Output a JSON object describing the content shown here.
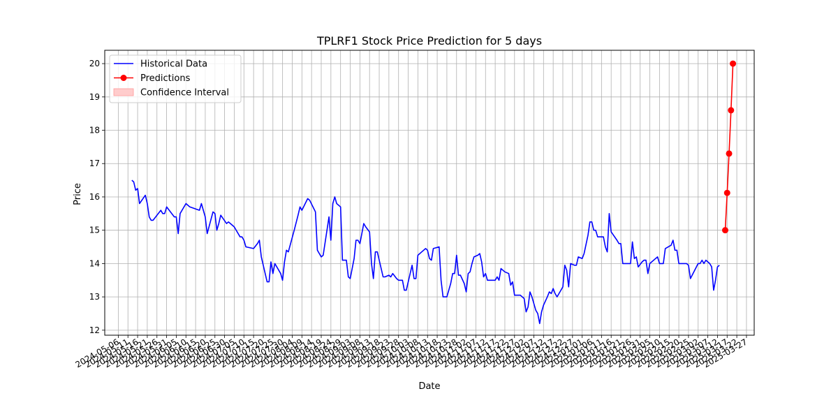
{
  "chart_data": {
    "type": "line",
    "title": "TPLRF1 Stock Price Prediction for 5 days",
    "xlabel": "Date",
    "ylabel": "Price",
    "xlim": [
      "2024-04-29",
      "2025-03-31"
    ],
    "ylim": [
      11.85,
      20.4
    ],
    "grid": true,
    "legend_position": "top-left",
    "y_ticks": [
      12,
      13,
      14,
      15,
      16,
      17,
      18,
      19,
      20
    ],
    "x_tick_labels": [
      "2024-05-06",
      "2024-05-11",
      "2024-05-16",
      "2024-05-21",
      "2024-05-26",
      "2024-05-31",
      "2024-06-05",
      "2024-06-10",
      "2024-06-15",
      "2024-06-20",
      "2024-06-25",
      "2024-06-30",
      "2024-07-05",
      "2024-07-10",
      "2024-07-15",
      "2024-07-20",
      "2024-07-25",
      "2024-07-30",
      "2024-08-04",
      "2024-08-09",
      "2024-08-14",
      "2024-08-19",
      "2024-08-24",
      "2024-08-29",
      "2024-09-03",
      "2024-09-08",
      "2024-09-13",
      "2024-09-18",
      "2024-09-23",
      "2024-09-28",
      "2024-10-03",
      "2024-10-08",
      "2024-10-13",
      "2024-10-18",
      "2024-10-23",
      "2024-10-28",
      "2024-11-02",
      "2024-11-07",
      "2024-11-12",
      "2024-11-17",
      "2024-11-22",
      "2024-11-27",
      "2024-12-02",
      "2024-12-07",
      "2024-12-12",
      "2024-12-17",
      "2024-12-22",
      "2024-12-27",
      "2025-01-01",
      "2025-01-06",
      "2025-01-11",
      "2025-01-16",
      "2025-01-21",
      "2025-01-26",
      "2025-01-31",
      "2025-02-05",
      "2025-02-10",
      "2025-02-15",
      "2025-02-20",
      "2025-02-25",
      "2025-03-02",
      "2025-03-07",
      "2025-03-12",
      "2025-03-17",
      "2025-03-22",
      "2025-03-27"
    ],
    "series": [
      {
        "name": "Historical Data",
        "color": "#0000ff",
        "marker": "none",
        "points": [
          [
            "2024-05-13",
            16.5
          ],
          [
            "2024-05-14",
            16.45
          ],
          [
            "2024-05-15",
            16.2
          ],
          [
            "2024-05-16",
            16.25
          ],
          [
            "2024-05-17",
            15.8
          ],
          [
            "2024-05-20",
            16.05
          ],
          [
            "2024-05-21",
            15.8
          ],
          [
            "2024-05-22",
            15.4
          ],
          [
            "2024-05-23",
            15.3
          ],
          [
            "2024-05-24",
            15.3
          ],
          [
            "2024-05-28",
            15.6
          ],
          [
            "2024-05-29",
            15.5
          ],
          [
            "2024-05-30",
            15.5
          ],
          [
            "2024-05-31",
            15.7
          ],
          [
            "2024-06-04",
            15.4
          ],
          [
            "2024-06-05",
            15.4
          ],
          [
            "2024-06-06",
            14.9
          ],
          [
            "2024-06-07",
            15.5
          ],
          [
            "2024-06-10",
            15.8
          ],
          [
            "2024-06-11",
            15.75
          ],
          [
            "2024-06-12",
            15.7
          ],
          [
            "2024-06-17",
            15.6
          ],
          [
            "2024-06-18",
            15.8
          ],
          [
            "2024-06-20",
            15.4
          ],
          [
            "2024-06-21",
            14.9
          ],
          [
            "2024-06-24",
            15.55
          ],
          [
            "2024-06-25",
            15.5
          ],
          [
            "2024-06-26",
            15.0
          ],
          [
            "2024-06-27",
            15.2
          ],
          [
            "2024-06-28",
            15.45
          ],
          [
            "2024-07-01",
            15.2
          ],
          [
            "2024-07-02",
            15.25
          ],
          [
            "2024-07-03",
            15.2
          ],
          [
            "2024-07-05",
            15.1
          ],
          [
            "2024-07-08",
            14.8
          ],
          [
            "2024-07-09",
            14.8
          ],
          [
            "2024-07-10",
            14.7
          ],
          [
            "2024-07-11",
            14.5
          ],
          [
            "2024-07-15",
            14.45
          ],
          [
            "2024-07-17",
            14.6
          ],
          [
            "2024-07-18",
            14.7
          ],
          [
            "2024-07-19",
            14.2
          ],
          [
            "2024-07-22",
            13.45
          ],
          [
            "2024-07-23",
            13.45
          ],
          [
            "2024-07-24",
            14.05
          ],
          [
            "2024-07-25",
            13.7
          ],
          [
            "2024-07-26",
            14.0
          ],
          [
            "2024-07-29",
            13.7
          ],
          [
            "2024-07-30",
            13.5
          ],
          [
            "2024-07-31",
            14.05
          ],
          [
            "2024-08-01",
            14.4
          ],
          [
            "2024-08-02",
            14.35
          ],
          [
            "2024-08-05",
            15.0
          ],
          [
            "2024-08-07",
            15.45
          ],
          [
            "2024-08-08",
            15.7
          ],
          [
            "2024-08-09",
            15.6
          ],
          [
            "2024-08-12",
            15.95
          ],
          [
            "2024-08-13",
            15.9
          ],
          [
            "2024-08-16",
            15.55
          ],
          [
            "2024-08-17",
            14.4
          ],
          [
            "2024-08-19",
            14.2
          ],
          [
            "2024-08-20",
            14.25
          ],
          [
            "2024-08-23",
            15.4
          ],
          [
            "2024-08-24",
            14.7
          ],
          [
            "2024-08-25",
            15.8
          ],
          [
            "2024-08-26",
            16.0
          ],
          [
            "2024-08-27",
            15.8
          ],
          [
            "2024-08-29",
            15.7
          ],
          [
            "2024-08-30",
            14.1
          ],
          [
            "2024-09-01",
            14.1
          ],
          [
            "2024-09-02",
            13.6
          ],
          [
            "2024-09-03",
            13.55
          ],
          [
            "2024-09-05",
            14.15
          ],
          [
            "2024-09-06",
            14.7
          ],
          [
            "2024-09-07",
            14.7
          ],
          [
            "2024-09-08",
            14.6
          ],
          [
            "2024-09-10",
            15.2
          ],
          [
            "2024-09-11",
            15.1
          ],
          [
            "2024-09-13",
            14.95
          ],
          [
            "2024-09-14",
            14.0
          ],
          [
            "2024-09-15",
            13.55
          ],
          [
            "2024-09-16",
            14.35
          ],
          [
            "2024-09-17",
            14.35
          ],
          [
            "2024-09-20",
            13.6
          ],
          [
            "2024-09-21",
            13.6
          ],
          [
            "2024-09-23",
            13.65
          ],
          [
            "2024-09-24",
            13.6
          ],
          [
            "2024-09-25",
            13.7
          ],
          [
            "2024-09-27",
            13.55
          ],
          [
            "2024-09-28",
            13.5
          ],
          [
            "2024-09-30",
            13.5
          ],
          [
            "2024-10-01",
            13.2
          ],
          [
            "2024-10-02",
            13.2
          ],
          [
            "2024-10-05",
            13.95
          ],
          [
            "2024-10-06",
            13.55
          ],
          [
            "2024-10-07",
            13.55
          ],
          [
            "2024-10-08",
            14.25
          ],
          [
            "2024-10-10",
            14.35
          ],
          [
            "2024-10-12",
            14.45
          ],
          [
            "2024-10-13",
            14.4
          ],
          [
            "2024-10-14",
            14.15
          ],
          [
            "2024-10-15",
            14.1
          ],
          [
            "2024-10-16",
            14.45
          ],
          [
            "2024-10-19",
            14.5
          ],
          [
            "2024-10-20",
            13.5
          ],
          [
            "2024-10-21",
            13.0
          ],
          [
            "2024-10-23",
            13.0
          ],
          [
            "2024-10-25",
            13.4
          ],
          [
            "2024-10-26",
            13.7
          ],
          [
            "2024-10-27",
            13.7
          ],
          [
            "2024-10-28",
            14.25
          ],
          [
            "2024-10-29",
            13.65
          ],
          [
            "2024-10-30",
            13.65
          ],
          [
            "2024-11-01",
            13.4
          ],
          [
            "2024-11-02",
            13.15
          ],
          [
            "2024-11-03",
            13.7
          ],
          [
            "2024-11-04",
            13.75
          ],
          [
            "2024-11-05",
            14.0
          ],
          [
            "2024-11-06",
            14.2
          ],
          [
            "2024-11-08",
            14.25
          ],
          [
            "2024-11-09",
            14.3
          ],
          [
            "2024-11-10",
            14.05
          ],
          [
            "2024-11-11",
            13.6
          ],
          [
            "2024-11-12",
            13.7
          ],
          [
            "2024-11-13",
            13.5
          ],
          [
            "2024-11-15",
            13.5
          ],
          [
            "2024-11-17",
            13.5
          ],
          [
            "2024-11-18",
            13.6
          ],
          [
            "2024-11-19",
            13.5
          ],
          [
            "2024-11-20",
            13.85
          ],
          [
            "2024-11-22",
            13.75
          ],
          [
            "2024-11-24",
            13.7
          ],
          [
            "2024-11-25",
            13.35
          ],
          [
            "2024-11-26",
            13.45
          ],
          [
            "2024-11-27",
            13.05
          ],
          [
            "2024-11-30",
            13.05
          ],
          [
            "2024-12-02",
            12.95
          ],
          [
            "2024-12-03",
            12.55
          ],
          [
            "2024-12-04",
            12.7
          ],
          [
            "2024-12-05",
            13.15
          ],
          [
            "2024-12-06",
            13.0
          ],
          [
            "2024-12-08",
            12.6
          ],
          [
            "2024-12-09",
            12.5
          ],
          [
            "2024-12-10",
            12.2
          ],
          [
            "2024-12-11",
            12.55
          ],
          [
            "2024-12-12",
            12.75
          ],
          [
            "2024-12-14",
            13.0
          ],
          [
            "2024-12-15",
            13.15
          ],
          [
            "2024-12-16",
            13.1
          ],
          [
            "2024-12-17",
            13.25
          ],
          [
            "2024-12-18",
            13.1
          ],
          [
            "2024-12-19",
            13.0
          ],
          [
            "2024-12-21",
            13.2
          ],
          [
            "2024-12-22",
            13.3
          ],
          [
            "2024-12-23",
            13.95
          ],
          [
            "2024-12-24",
            13.8
          ],
          [
            "2024-12-25",
            13.3
          ],
          [
            "2024-12-26",
            14.0
          ],
          [
            "2024-12-28",
            13.95
          ],
          [
            "2024-12-29",
            13.95
          ],
          [
            "2024-12-30",
            14.2
          ],
          [
            "2025-01-01",
            14.15
          ],
          [
            "2025-01-02",
            14.3
          ],
          [
            "2025-01-04",
            14.85
          ],
          [
            "2025-01-05",
            15.25
          ],
          [
            "2025-01-06",
            15.25
          ],
          [
            "2025-01-07",
            15.0
          ],
          [
            "2025-01-08",
            15.0
          ],
          [
            "2025-01-09",
            14.8
          ],
          [
            "2025-01-12",
            14.8
          ],
          [
            "2025-01-13",
            14.5
          ],
          [
            "2025-01-14",
            14.35
          ],
          [
            "2025-01-15",
            15.5
          ],
          [
            "2025-01-16",
            14.95
          ],
          [
            "2025-01-19",
            14.7
          ],
          [
            "2025-01-20",
            14.6
          ],
          [
            "2025-01-21",
            14.6
          ],
          [
            "2025-01-22",
            14.0
          ],
          [
            "2025-01-26",
            14.0
          ],
          [
            "2025-01-27",
            14.65
          ],
          [
            "2025-01-28",
            14.15
          ],
          [
            "2025-01-29",
            14.2
          ],
          [
            "2025-01-30",
            13.9
          ],
          [
            "2025-02-01",
            14.05
          ],
          [
            "2025-02-02",
            14.1
          ],
          [
            "2025-02-03",
            14.1
          ],
          [
            "2025-02-04",
            13.7
          ],
          [
            "2025-02-05",
            14.0
          ],
          [
            "2025-02-08",
            14.15
          ],
          [
            "2025-02-09",
            14.2
          ],
          [
            "2025-02-10",
            14.0
          ],
          [
            "2025-02-12",
            14.0
          ],
          [
            "2025-02-13",
            14.45
          ],
          [
            "2025-02-16",
            14.55
          ],
          [
            "2025-02-17",
            14.7
          ],
          [
            "2025-02-18",
            14.4
          ],
          [
            "2025-02-19",
            14.4
          ],
          [
            "2025-02-20",
            14.0
          ],
          [
            "2025-02-24",
            14.0
          ],
          [
            "2025-02-25",
            13.95
          ],
          [
            "2025-02-26",
            13.55
          ],
          [
            "2025-03-02",
            14.0
          ],
          [
            "2025-03-03",
            14.0
          ],
          [
            "2025-03-04",
            14.1
          ],
          [
            "2025-03-05",
            14.0
          ],
          [
            "2025-03-06",
            14.1
          ],
          [
            "2025-03-08",
            14.0
          ],
          [
            "2025-03-09",
            13.9
          ],
          [
            "2025-03-10",
            13.2
          ],
          [
            "2025-03-11",
            13.5
          ],
          [
            "2025-03-12",
            13.9
          ],
          [
            "2025-03-13",
            13.95
          ]
        ]
      },
      {
        "name": "Predictions",
        "color": "#ff0000",
        "marker": "circle",
        "points": [
          [
            "2025-03-16",
            15.0
          ],
          [
            "2025-03-17",
            16.12
          ],
          [
            "2025-03-18",
            17.3
          ],
          [
            "2025-03-19",
            18.6
          ],
          [
            "2025-03-20",
            20.0
          ]
        ]
      }
    ],
    "legend": [
      {
        "label": "Historical Data",
        "kind": "line",
        "color": "#0000ff"
      },
      {
        "label": "Predictions",
        "kind": "line-marker",
        "color": "#ff0000"
      },
      {
        "label": "Confidence Interval",
        "kind": "patch",
        "color": "#ffcccc"
      }
    ]
  }
}
